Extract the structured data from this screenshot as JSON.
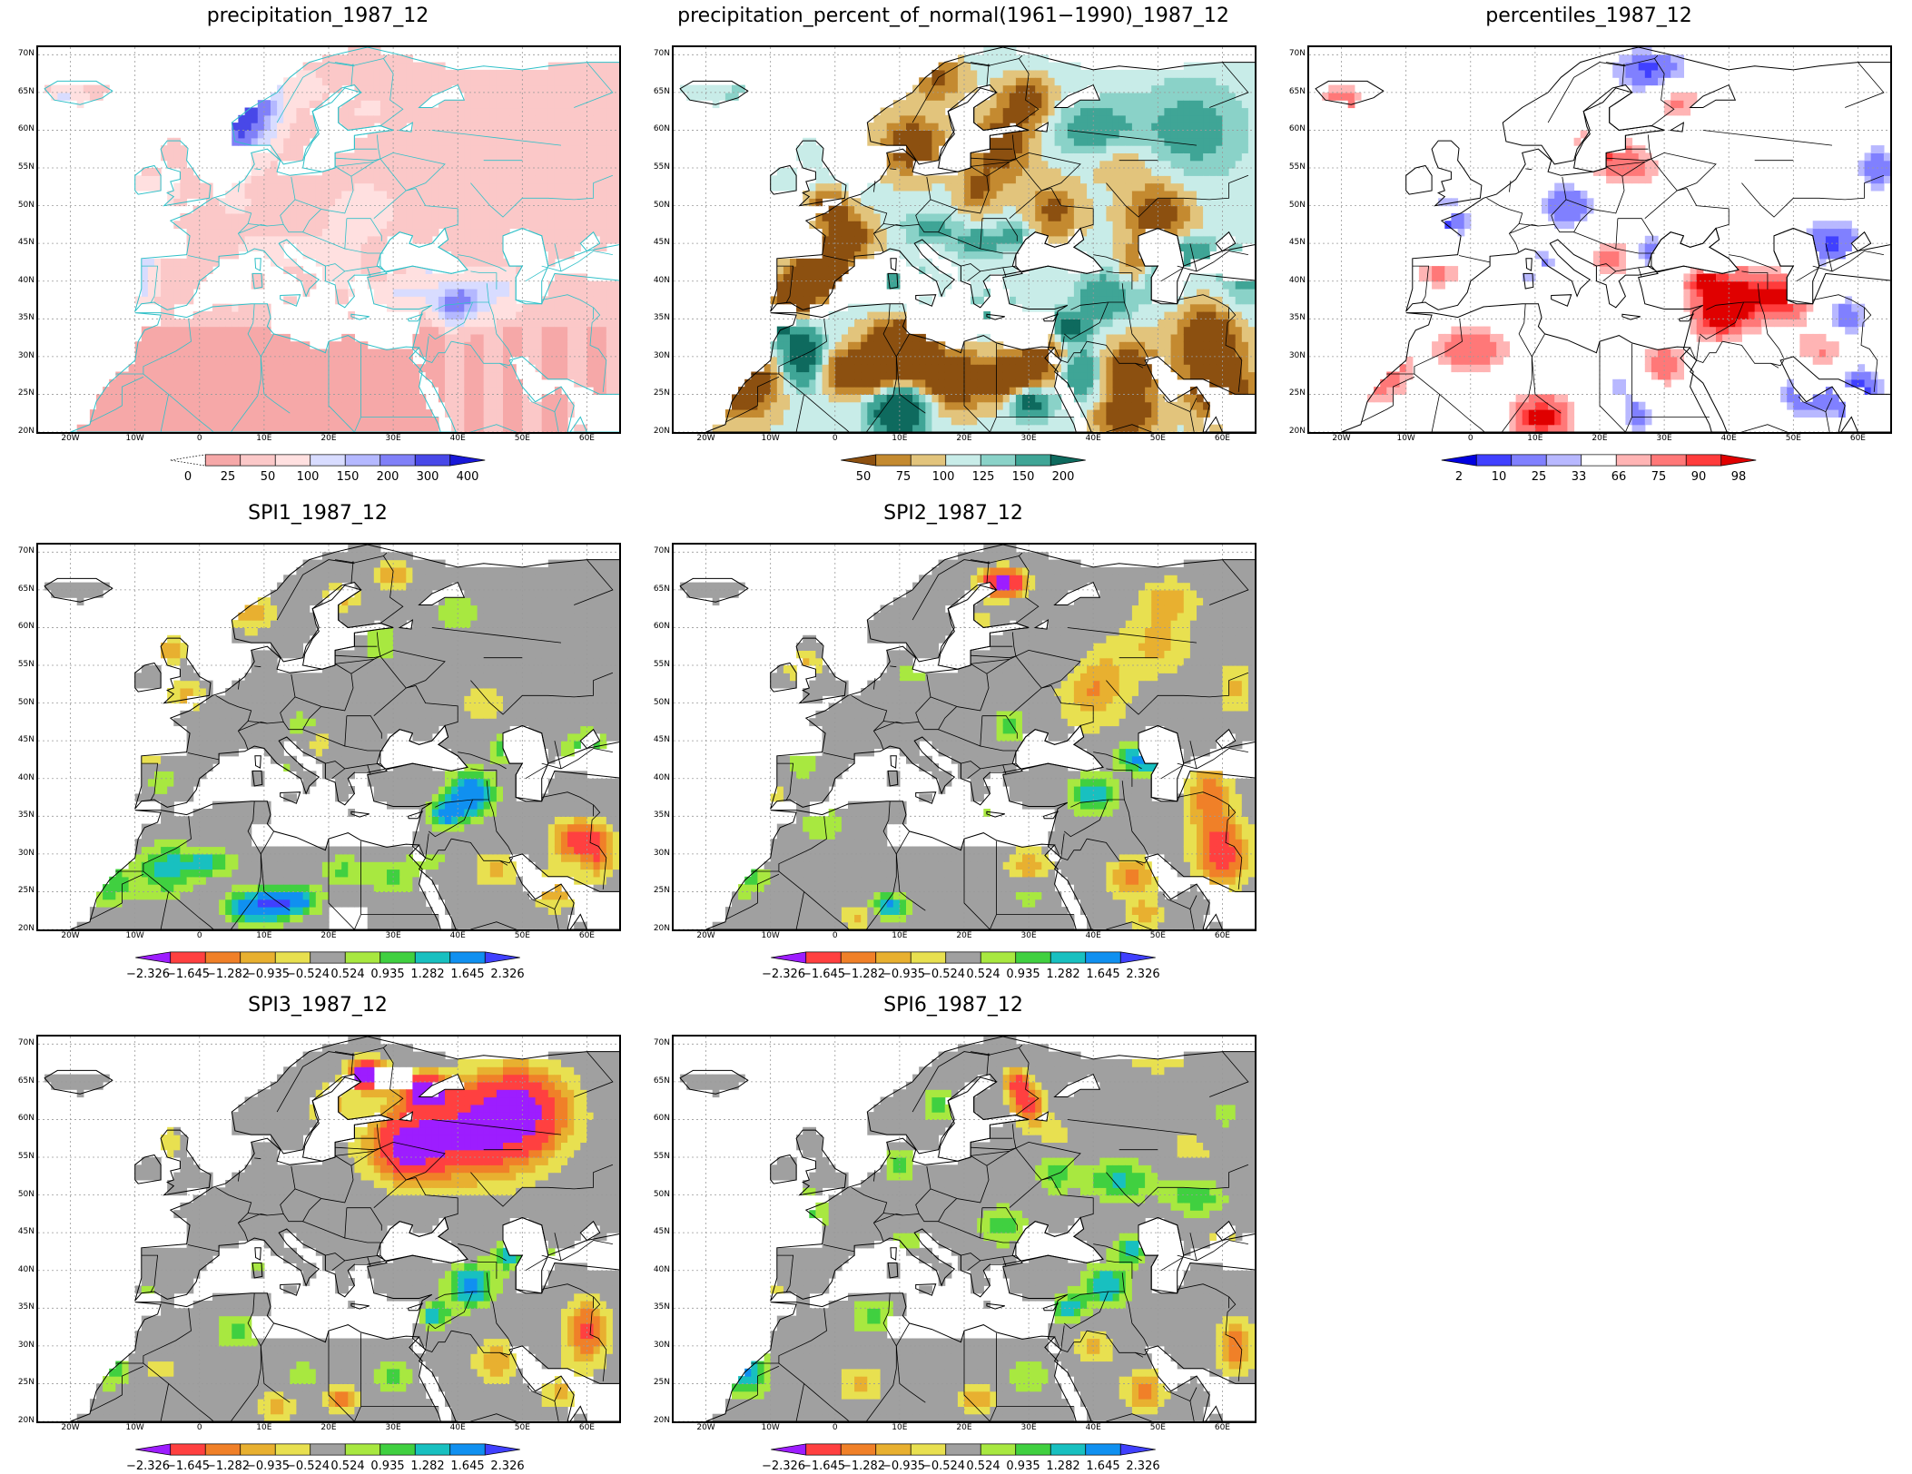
{
  "axes": {
    "lat_ticks": [
      "20N",
      "25N",
      "30N",
      "35N",
      "40N",
      "45N",
      "50N",
      "55N",
      "60N",
      "65N",
      "70N"
    ],
    "lon_ticks": [
      "20W",
      "10W",
      "0",
      "10E",
      "20E",
      "30E",
      "40E",
      "50E",
      "60E"
    ]
  },
  "colorbars": {
    "precip": {
      "labels": [
        "0",
        "25",
        "50",
        "100",
        "150",
        "200",
        "300",
        "400"
      ],
      "colors": [
        "#ffffff",
        "#f6a8a8",
        "#fbc8c8",
        "#ffe0e0",
        "#d8dcff",
        "#b4b8ff",
        "#8080f8",
        "#4848e8",
        "#1818d8"
      ]
    },
    "percent": {
      "labels": [
        "50",
        "75",
        "100",
        "125",
        "150",
        "200"
      ],
      "colors": [
        "#8c5010",
        "#c48a30",
        "#e2c47c",
        "#c8ece8",
        "#8ad2c8",
        "#3fa596",
        "#0e6a5e"
      ]
    },
    "percentiles": {
      "labels": [
        "2",
        "10",
        "25",
        "33",
        "66",
        "75",
        "90",
        "98"
      ],
      "colors": [
        "#0000e0",
        "#4040ff",
        "#8080ff",
        "#b8b8ff",
        "#ffffff",
        "#ffb4b4",
        "#ff7878",
        "#ff3c3c",
        "#e00000"
      ]
    },
    "spi": {
      "labels": [
        "-2.326",
        "-1.645",
        "-1.282",
        "-0.935",
        "-0.524",
        "0.524",
        "0.935",
        "1.282",
        "1.645",
        "2.326"
      ],
      "colors": [
        "#9d1dff",
        "#ff4040",
        "#f08028",
        "#e8b030",
        "#e8e050",
        "#a0a0a0",
        "#a8e840",
        "#40d040",
        "#18c0c0",
        "#1090f0",
        "#4040ff"
      ]
    }
  },
  "panels": [
    {
      "title": "precipitation_1987_12",
      "scale": "precip",
      "field": "precip",
      "lines": "#30c0c8"
    },
    {
      "title": "precipitation_percent_of_normal(1961−1990)_1987_12",
      "scale": "percent",
      "field": "pct",
      "lines": "#000000"
    },
    {
      "title": "percentiles_1987_12",
      "scale": "percentiles",
      "field": "ptl",
      "lines": "#000000"
    },
    {
      "title": "SPI1_1987_12",
      "scale": "spi",
      "field": "spi1",
      "lines": "#000000"
    },
    {
      "title": "SPI2_1987_12",
      "scale": "spi",
      "field": "spi2",
      "lines": "#000000"
    },
    {
      "title": "SPI3_1987_12",
      "scale": "spi",
      "field": "spi3",
      "lines": "#000000"
    },
    {
      "title": "SPI6_1987_12",
      "scale": "spi",
      "field": "spi6",
      "lines": "#000000"
    }
  ]
}
